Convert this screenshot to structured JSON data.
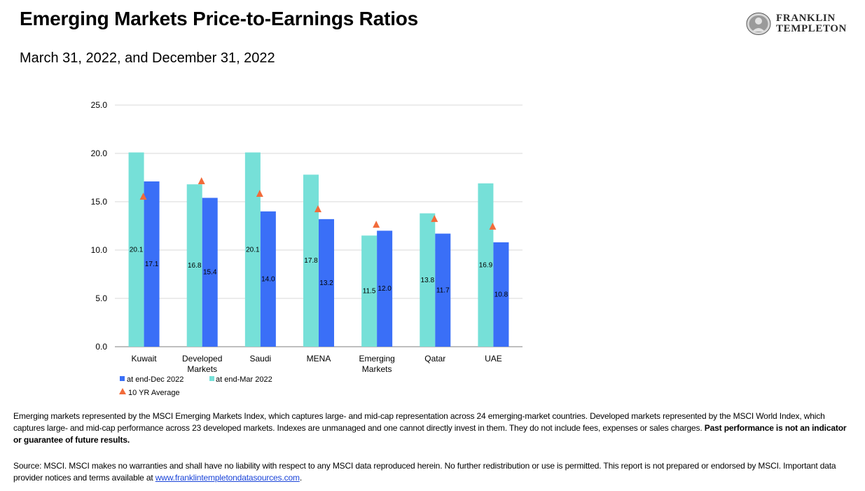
{
  "header": {
    "title": "Emerging Markets Price-to-Earnings Ratios",
    "subtitle": "March 31, 2022, and December 31, 2022"
  },
  "logo": {
    "line1": "FRANKLIN",
    "line2": "TEMPLETON"
  },
  "chart_data": {
    "type": "bar",
    "categories": [
      [
        "Kuwait"
      ],
      [
        "Developed",
        "Markets"
      ],
      [
        "Saudi"
      ],
      [
        "MENA"
      ],
      [
        "Emerging",
        "Markets"
      ],
      [
        "Qatar"
      ],
      [
        "UAE"
      ]
    ],
    "series": [
      {
        "name": "at end-Mar 2022",
        "type": "bar",
        "color": "#76e0d8",
        "values": [
          20.1,
          16.8,
          20.1,
          17.8,
          11.5,
          13.8,
          16.9
        ]
      },
      {
        "name": "at end-Dec 2022",
        "type": "bar",
        "color": "#3a6ff7",
        "values": [
          17.1,
          15.4,
          14.0,
          13.2,
          12.0,
          11.7,
          10.8
        ]
      },
      {
        "name": "10 YR Average",
        "type": "marker",
        "marker": "triangle",
        "color": "#f26b3a",
        "values": [
          15.5,
          17.1,
          15.8,
          14.2,
          12.6,
          13.2,
          12.4
        ]
      }
    ],
    "ylim": [
      0,
      25
    ],
    "yticks": [
      "0.0",
      "5.0",
      "10.0",
      "15.0",
      "20.0",
      "25.0"
    ],
    "grid": true,
    "legend_placement": "bottom-left"
  },
  "notes": {
    "disclaimer": "Emerging markets represented by the MSCI Emerging Markets Index, which captures large- and mid-cap representation across 24 emerging-market countries. Developed markets represented by the MSCI World Index, which captures large- and mid-cap performance across 23 developed markets. Indexes are unmanaged and one cannot directly invest in them. They do not include fees, expenses or sales charges.",
    "disclaimer_bold": "Past performance is not an indicator or guarantee of future results.",
    "source": "Source: MSCI. MSCI makes no warranties and shall have no liability with respect to any MSCI data reproduced herein. No further redistribution or use is permitted. This report is not prepared or endorsed by MSCI. Important data provider notices and terms available at",
    "source_link": "www.franklintempletondatasources.com",
    "source_end": "."
  }
}
